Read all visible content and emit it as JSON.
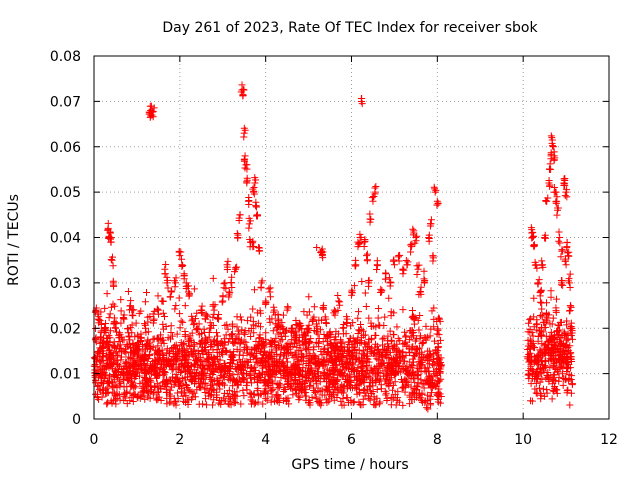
{
  "chart_data": {
    "type": "scatter",
    "title": "Day 261 of 2023, Rate Of TEC Index for receiver sbok",
    "xlabel": "GPS time / hours",
    "ylabel": "ROTI / TECUs",
    "xlim": [
      0,
      12
    ],
    "ylim": [
      0,
      0.08
    ],
    "xticks": [
      0,
      2,
      4,
      6,
      8,
      10,
      12
    ],
    "yticks": [
      0,
      0.01,
      0.02,
      0.03,
      0.04,
      0.05,
      0.06,
      0.07,
      0.08
    ],
    "xtick_labels": [
      "0",
      "2",
      "4",
      "6",
      "8",
      "10",
      "12"
    ],
    "ytick_labels": [
      "0",
      "0.01",
      "0.02",
      "0.03",
      "0.04",
      "0.05",
      "0.06",
      "0.07",
      "0.08"
    ],
    "grid": true,
    "marker": "+",
    "color": "#ff0000",
    "series": [
      {
        "name": "ROTI",
        "points": [
          [
            0.05,
            0.024
          ],
          [
            0.1,
            0.022
          ],
          [
            0.15,
            0.018
          ],
          [
            0.2,
            0.015
          ],
          [
            0.25,
            0.02
          ],
          [
            0.3,
            0.017
          ],
          [
            0.33,
            0.042
          ],
          [
            0.35,
            0.04
          ],
          [
            0.38,
            0.041
          ],
          [
            0.4,
            0.039
          ],
          [
            0.42,
            0.035
          ],
          [
            0.45,
            0.03
          ],
          [
            0.5,
            0.02
          ],
          [
            0.6,
            0.018
          ],
          [
            0.7,
            0.022
          ],
          [
            0.8,
            0.019
          ],
          [
            0.85,
            0.025
          ],
          [
            0.9,
            0.024
          ],
          [
            1.0,
            0.016
          ],
          [
            1.1,
            0.018
          ],
          [
            1.2,
            0.02
          ],
          [
            1.3,
            0.0675
          ],
          [
            1.32,
            0.068
          ],
          [
            1.35,
            0.067
          ],
          [
            1.38,
            0.0678
          ],
          [
            1.4,
            0.022
          ],
          [
            1.5,
            0.024
          ],
          [
            1.6,
            0.026
          ],
          [
            1.65,
            0.033
          ],
          [
            1.7,
            0.03
          ],
          [
            1.8,
            0.028
          ],
          [
            1.9,
            0.03
          ],
          [
            2.0,
            0.036
          ],
          [
            2.05,
            0.034
          ],
          [
            2.1,
            0.032
          ],
          [
            2.15,
            0.03
          ],
          [
            2.2,
            0.028
          ],
          [
            2.3,
            0.022
          ],
          [
            2.4,
            0.02
          ],
          [
            2.5,
            0.024
          ],
          [
            2.6,
            0.022
          ],
          [
            2.7,
            0.02
          ],
          [
            2.8,
            0.024
          ],
          [
            2.9,
            0.022
          ],
          [
            3.0,
            0.026
          ],
          [
            3.05,
            0.03
          ],
          [
            3.1,
            0.034
          ],
          [
            3.15,
            0.028
          ],
          [
            3.2,
            0.03
          ],
          [
            3.3,
            0.033
          ],
          [
            3.35,
            0.04
          ],
          [
            3.4,
            0.045
          ],
          [
            3.45,
            0.0725
          ],
          [
            3.47,
            0.0715
          ],
          [
            3.5,
            0.063
          ],
          [
            3.52,
            0.058
          ],
          [
            3.54,
            0.056
          ],
          [
            3.56,
            0.052
          ],
          [
            3.6,
            0.048
          ],
          [
            3.62,
            0.043
          ],
          [
            3.65,
            0.039
          ],
          [
            3.7,
            0.038
          ],
          [
            3.72,
            0.05
          ],
          [
            3.75,
            0.052
          ],
          [
            3.78,
            0.047
          ],
          [
            3.8,
            0.045
          ],
          [
            3.85,
            0.037
          ],
          [
            3.9,
            0.03
          ],
          [
            4.0,
            0.026
          ],
          [
            4.1,
            0.028
          ],
          [
            4.2,
            0.024
          ],
          [
            4.3,
            0.022
          ],
          [
            4.4,
            0.02
          ],
          [
            4.5,
            0.024
          ],
          [
            4.6,
            0.02
          ],
          [
            4.7,
            0.018
          ],
          [
            4.8,
            0.021
          ],
          [
            4.9,
            0.019
          ],
          [
            5.0,
            0.02
          ],
          [
            5.1,
            0.022
          ],
          [
            5.2,
            0.02
          ],
          [
            5.3,
            0.037
          ],
          [
            5.32,
            0.036
          ],
          [
            5.35,
            0.025
          ],
          [
            5.4,
            0.022
          ],
          [
            5.5,
            0.018
          ],
          [
            5.6,
            0.024
          ],
          [
            5.7,
            0.026
          ],
          [
            5.8,
            0.02
          ],
          [
            5.9,
            0.022
          ],
          [
            6.0,
            0.028
          ],
          [
            6.1,
            0.034
          ],
          [
            6.15,
            0.038
          ],
          [
            6.2,
            0.04
          ],
          [
            6.25,
            0.0695
          ],
          [
            6.3,
            0.039
          ],
          [
            6.35,
            0.036
          ],
          [
            6.4,
            0.03
          ],
          [
            6.45,
            0.044
          ],
          [
            6.5,
            0.048
          ],
          [
            6.55,
            0.05
          ],
          [
            6.6,
            0.034
          ],
          [
            6.7,
            0.028
          ],
          [
            6.8,
            0.032
          ],
          [
            6.9,
            0.03
          ],
          [
            7.0,
            0.034
          ],
          [
            7.1,
            0.036
          ],
          [
            7.2,
            0.032
          ],
          [
            7.3,
            0.034
          ],
          [
            7.4,
            0.038
          ],
          [
            7.45,
            0.041
          ],
          [
            7.5,
            0.04
          ],
          [
            7.55,
            0.033
          ],
          [
            7.6,
            0.028
          ],
          [
            7.7,
            0.03
          ],
          [
            7.8,
            0.04
          ],
          [
            7.85,
            0.043
          ],
          [
            7.9,
            0.036
          ],
          [
            7.95,
            0.05
          ],
          [
            8.0,
            0.048
          ],
          [
            8.05,
            0.022
          ],
          [
            10.2,
            0.041
          ],
          [
            10.22,
            0.04
          ],
          [
            10.25,
            0.038
          ],
          [
            10.3,
            0.034
          ],
          [
            10.35,
            0.03
          ],
          [
            10.4,
            0.028
          ],
          [
            10.45,
            0.034
          ],
          [
            10.5,
            0.04
          ],
          [
            10.55,
            0.048
          ],
          [
            10.6,
            0.052
          ],
          [
            10.62,
            0.055
          ],
          [
            10.65,
            0.058
          ],
          [
            10.68,
            0.0615
          ],
          [
            10.7,
            0.06
          ],
          [
            10.72,
            0.057
          ],
          [
            10.75,
            0.05
          ],
          [
            10.78,
            0.048
          ],
          [
            10.8,
            0.046
          ],
          [
            10.85,
            0.04
          ],
          [
            10.9,
            0.037
          ],
          [
            10.95,
            0.052
          ],
          [
            10.97,
            0.053
          ],
          [
            11.0,
            0.05
          ],
          [
            11.02,
            0.038
          ],
          [
            11.05,
            0.036
          ],
          [
            11.08,
            0.03
          ],
          [
            11.1,
            0.025
          ],
          [
            11.12,
            0.02
          ],
          [
            11.0,
            0.034
          ],
          [
            10.9,
            0.03
          ]
        ],
        "bands": [
          {
            "x": [
              0.0,
              8.1
            ],
            "y_mean": 0.011,
            "y_spread": 0.0045,
            "count": 2600
          },
          {
            "x": [
              10.1,
              11.15
            ],
            "y_mean": 0.0135,
            "y_spread": 0.0045,
            "count": 380
          }
        ],
        "low_points": [
          [
            7.75,
            0.0025
          ],
          [
            7.78,
            0.0022
          ],
          [
            7.72,
            0.004
          ],
          [
            4.0,
            0.0045
          ],
          [
            0.4,
            0.004
          ],
          [
            2.6,
            0.0045
          ],
          [
            5.8,
            0.0045
          ],
          [
            10.5,
            0.005
          ]
        ]
      }
    ]
  }
}
